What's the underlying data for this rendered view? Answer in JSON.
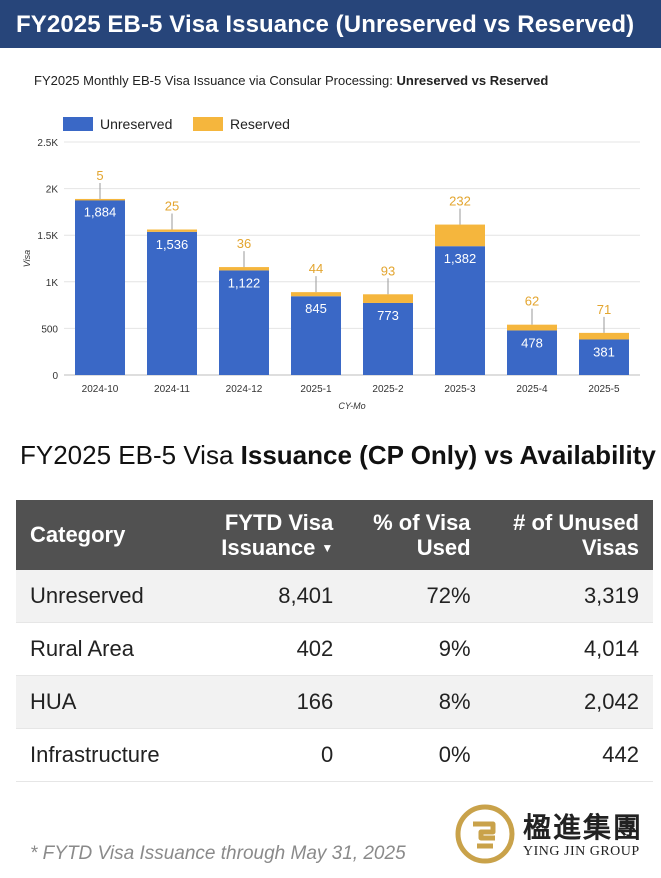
{
  "header": {
    "title": "FY2025 EB-5 Visa Issuance (Unreserved vs Reserved)"
  },
  "chart_title": {
    "prefix": "FY2025 Monthly EB-5 Visa Issuance via Consular Processing: ",
    "bold": "Unreserved vs Reserved"
  },
  "chart_data": {
    "type": "bar",
    "stacked": true,
    "title": "FY2025 Monthly EB-5 Visa Issuance via Consular Processing: Unreserved vs Reserved",
    "xlabel": "CY-Mo",
    "ylabel": "Visa",
    "ylim": [
      0,
      2500
    ],
    "yticks": [
      0,
      500,
      1000,
      1500,
      2000,
      2500
    ],
    "ytick_labels": [
      "0",
      "500",
      "1K",
      "1.5K",
      "2K",
      "2.5K"
    ],
    "categories": [
      "2024-10",
      "2024-11",
      "2024-12",
      "2025-1",
      "2025-2",
      "2025-3",
      "2025-4",
      "2025-5"
    ],
    "series": [
      {
        "name": "Unreserved",
        "color": "#3a68c6",
        "values": [
          1884,
          1536,
          1122,
          845,
          773,
          1382,
          478,
          381
        ]
      },
      {
        "name": "Reserved",
        "color": "#f5b63d",
        "values": [
          5,
          25,
          36,
          44,
          93,
          232,
          62,
          71
        ]
      }
    ],
    "legend_position": "top-left",
    "grid": true
  },
  "table": {
    "heading_prefix": "FY2025 EB-5 Visa ",
    "heading_bold": "Issuance (CP Only) vs Availability",
    "columns": [
      "Category",
      "FYTD Visa Issuance",
      "% of Visa Used",
      "# of Unused Visas"
    ],
    "column_lines": [
      [
        "Category"
      ],
      [
        "FYTD Visa",
        "Issuance"
      ],
      [
        "% of Visa",
        "Used"
      ],
      [
        "# of Unused",
        "Visas"
      ]
    ],
    "sort_icon": "sort-desc-icon",
    "rows": [
      [
        "Unreserved",
        "8,401",
        "72%",
        "3,319"
      ],
      [
        "Rural Area",
        "402",
        "9%",
        "4,014"
      ],
      [
        "HUA",
        "166",
        "8%",
        "2,042"
      ],
      [
        "Infrastructure",
        "0",
        "0%",
        "442"
      ]
    ]
  },
  "footnote": "* FYTD Visa Issuance through May 31, 2025",
  "logo": {
    "chinese": "楹進集團",
    "english": "YING JIN GROUP"
  },
  "colors": {
    "header_bg": "#27457a",
    "table_header_bg": "#515151",
    "reserved_label": "#e3a52f",
    "gold": "#c9a24a"
  }
}
